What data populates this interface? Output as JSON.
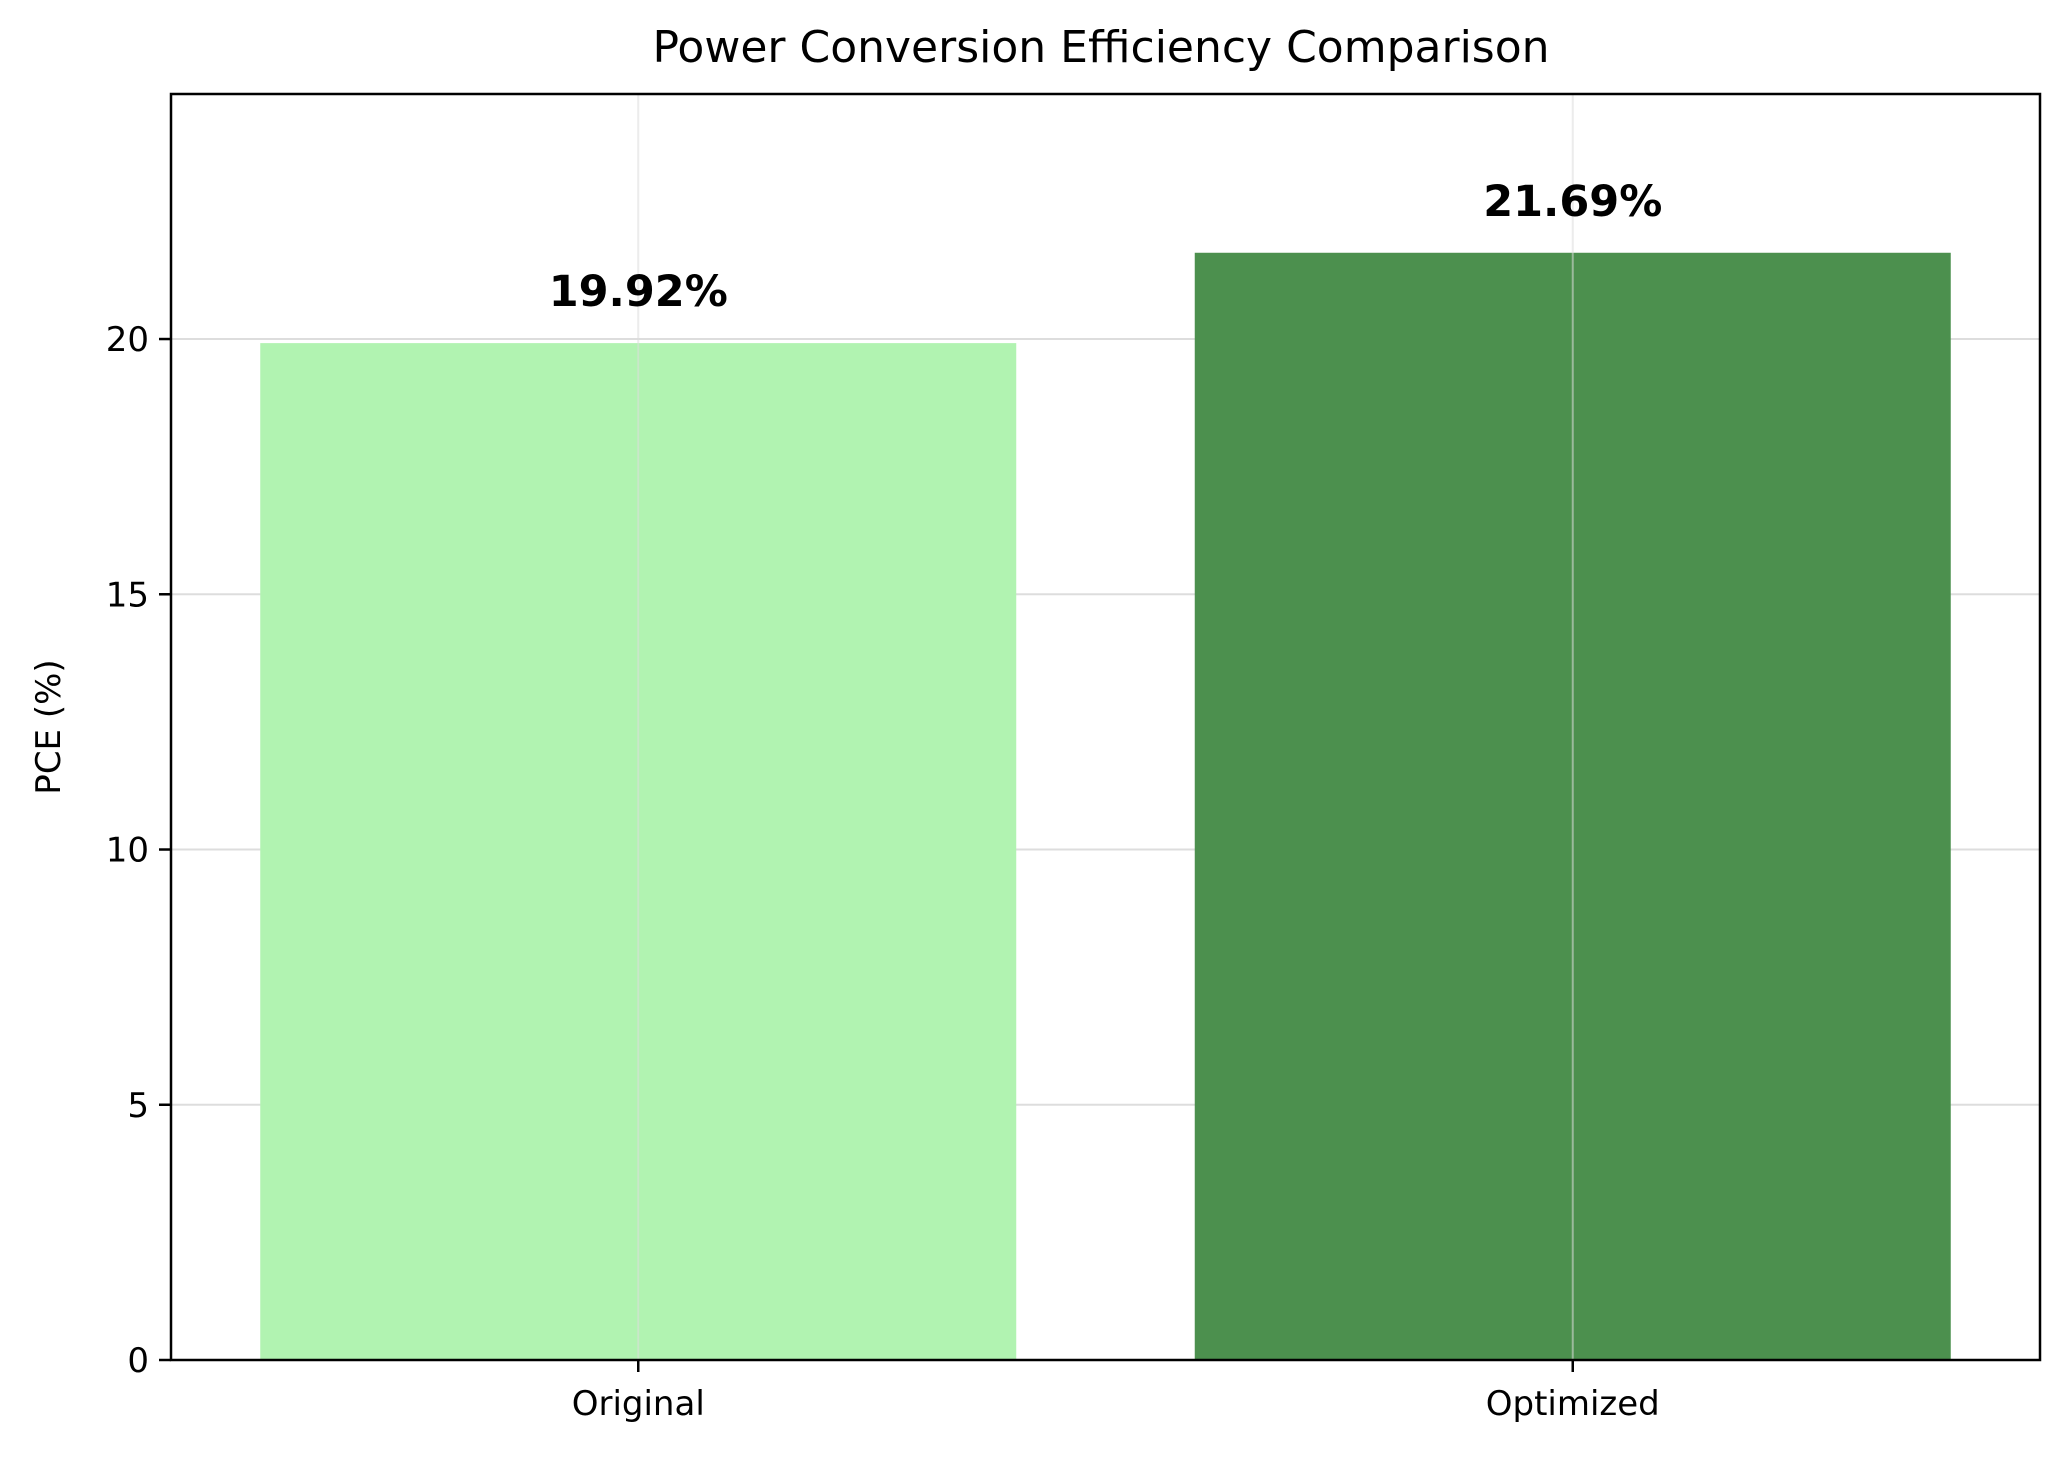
{
  "chart_data": {
    "type": "bar",
    "title": "Power Conversion Efficiency Comparison",
    "xlabel": "",
    "ylabel": "PCE (%)",
    "categories": [
      "Original",
      "Optimized"
    ],
    "values": [
      19.92,
      21.69
    ],
    "value_labels": [
      "19.92%",
      "21.69%"
    ],
    "bar_colors": [
      "#b1f3b1",
      "#4c904e"
    ],
    "ylim": [
      0,
      24.8
    ],
    "yticks": [
      0,
      5,
      10,
      15,
      20
    ],
    "ytick_labels": [
      "0",
      "5",
      "10",
      "15",
      "20"
    ],
    "grid": true,
    "legend": "none"
  }
}
